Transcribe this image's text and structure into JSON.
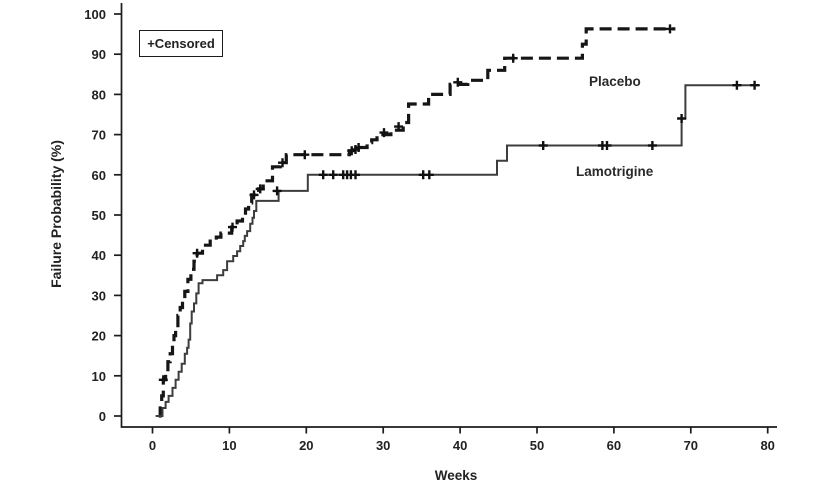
{
  "chart_data": {
    "type": "line",
    "subtype": "kaplan-meier-step",
    "title": "",
    "xlabel": "Weeks",
    "ylabel": "Failure Probability (%)",
    "xlim": [
      0,
      80
    ],
    "ylim": [
      0,
      100
    ],
    "xticks": [
      0,
      10,
      20,
      30,
      40,
      50,
      60,
      70,
      80
    ],
    "yticks": [
      0,
      10,
      20,
      30,
      40,
      50,
      60,
      70,
      80,
      90,
      100
    ],
    "grid": false,
    "axis_color": "#1c1c1c",
    "legend": {
      "censored_label": "+Censored",
      "position": "top-left-inside"
    },
    "series": [
      {
        "name": "Placebo",
        "line_style": "dashed",
        "color": "#161616",
        "steps": [
          [
            0.8,
            0
          ],
          [
            1.0,
            2
          ],
          [
            1.2,
            5
          ],
          [
            1.4,
            9
          ],
          [
            1.7,
            11
          ],
          [
            2.0,
            13.5
          ],
          [
            2.3,
            15.5
          ],
          [
            2.6,
            17.5
          ],
          [
            2.8,
            20
          ],
          [
            3.0,
            22.5
          ],
          [
            3.3,
            25
          ],
          [
            3.6,
            27
          ],
          [
            3.9,
            29
          ],
          [
            4.2,
            31
          ],
          [
            4.6,
            34
          ],
          [
            5.0,
            36.5
          ],
          [
            5.4,
            38.5
          ],
          [
            5.8,
            40.5
          ],
          [
            6.5,
            42.5
          ],
          [
            7.5,
            43.5
          ],
          [
            8.3,
            44.5
          ],
          [
            8.9,
            45.5
          ],
          [
            10.3,
            47
          ],
          [
            11.0,
            48.5
          ],
          [
            11.7,
            50
          ],
          [
            12.1,
            51.5
          ],
          [
            12.5,
            53
          ],
          [
            12.9,
            55
          ],
          [
            13.8,
            56.5
          ],
          [
            14.4,
            58.5
          ],
          [
            15.6,
            62
          ],
          [
            16.6,
            63
          ],
          [
            17.4,
            65
          ],
          [
            25.6,
            66
          ],
          [
            26.6,
            66.8
          ],
          [
            27.9,
            68
          ],
          [
            28.5,
            68.7
          ],
          [
            29.2,
            70
          ],
          [
            31.0,
            71.1
          ],
          [
            32.6,
            73
          ],
          [
            33.3,
            77.6
          ],
          [
            35.9,
            80
          ],
          [
            38.7,
            82.5
          ],
          [
            41.0,
            83.5
          ],
          [
            43.6,
            86
          ],
          [
            45.8,
            89
          ],
          [
            55.9,
            92.5
          ],
          [
            56.4,
            96.3
          ]
        ],
        "end_week": 68.0,
        "censored": [
          [
            1.4,
            9
          ],
          [
            5.8,
            40.5
          ],
          [
            10.4,
            47
          ],
          [
            13.2,
            55
          ],
          [
            14.0,
            56.5
          ],
          [
            16.9,
            63
          ],
          [
            19.8,
            65
          ],
          [
            25.9,
            66
          ],
          [
            26.4,
            66.3
          ],
          [
            26.8,
            66.8
          ],
          [
            30.1,
            70.5
          ],
          [
            32.0,
            72
          ],
          [
            39.7,
            83
          ],
          [
            46.9,
            89
          ],
          [
            67.3,
            96.3
          ]
        ]
      },
      {
        "name": "Lamotrigine",
        "line_style": "solid",
        "color": "#3d3d3d",
        "steps": [
          [
            0.4,
            0
          ],
          [
            1.3,
            2
          ],
          [
            1.7,
            3.5
          ],
          [
            2.1,
            5
          ],
          [
            2.6,
            7
          ],
          [
            3.0,
            9
          ],
          [
            3.4,
            11
          ],
          [
            3.8,
            13
          ],
          [
            4.2,
            15.5
          ],
          [
            4.5,
            17
          ],
          [
            4.7,
            19
          ],
          [
            4.9,
            23
          ],
          [
            5.1,
            26
          ],
          [
            5.4,
            28
          ],
          [
            5.7,
            30.5
          ],
          [
            6.0,
            33
          ],
          [
            6.5,
            33.8
          ],
          [
            8.4,
            35
          ],
          [
            9.2,
            36.3
          ],
          [
            9.7,
            38.5
          ],
          [
            10.5,
            39.8
          ],
          [
            11.0,
            41
          ],
          [
            11.4,
            42.3
          ],
          [
            11.8,
            43.5
          ],
          [
            12.0,
            44.8
          ],
          [
            12.3,
            46
          ],
          [
            12.7,
            47.8
          ],
          [
            13.0,
            49.3
          ],
          [
            13.2,
            51
          ],
          [
            13.5,
            53.5
          ],
          [
            16.4,
            56
          ],
          [
            20.2,
            60
          ],
          [
            44.8,
            63.5
          ],
          [
            46.1,
            67.3
          ],
          [
            68.8,
            74
          ],
          [
            69.3,
            82.3
          ]
        ],
        "end_week": 79.0,
        "censored": [
          [
            16.2,
            56
          ],
          [
            22.2,
            60
          ],
          [
            23.5,
            60
          ],
          [
            24.8,
            60
          ],
          [
            25.3,
            60
          ],
          [
            25.8,
            60
          ],
          [
            26.4,
            60
          ],
          [
            35.2,
            60
          ],
          [
            36.0,
            60
          ],
          [
            50.8,
            67.3
          ],
          [
            58.5,
            67.3
          ],
          [
            59.1,
            67.3
          ],
          [
            65.0,
            67.3
          ],
          [
            68.8,
            74
          ],
          [
            76.0,
            82.3
          ],
          [
            78.3,
            82.3
          ]
        ]
      }
    ]
  }
}
